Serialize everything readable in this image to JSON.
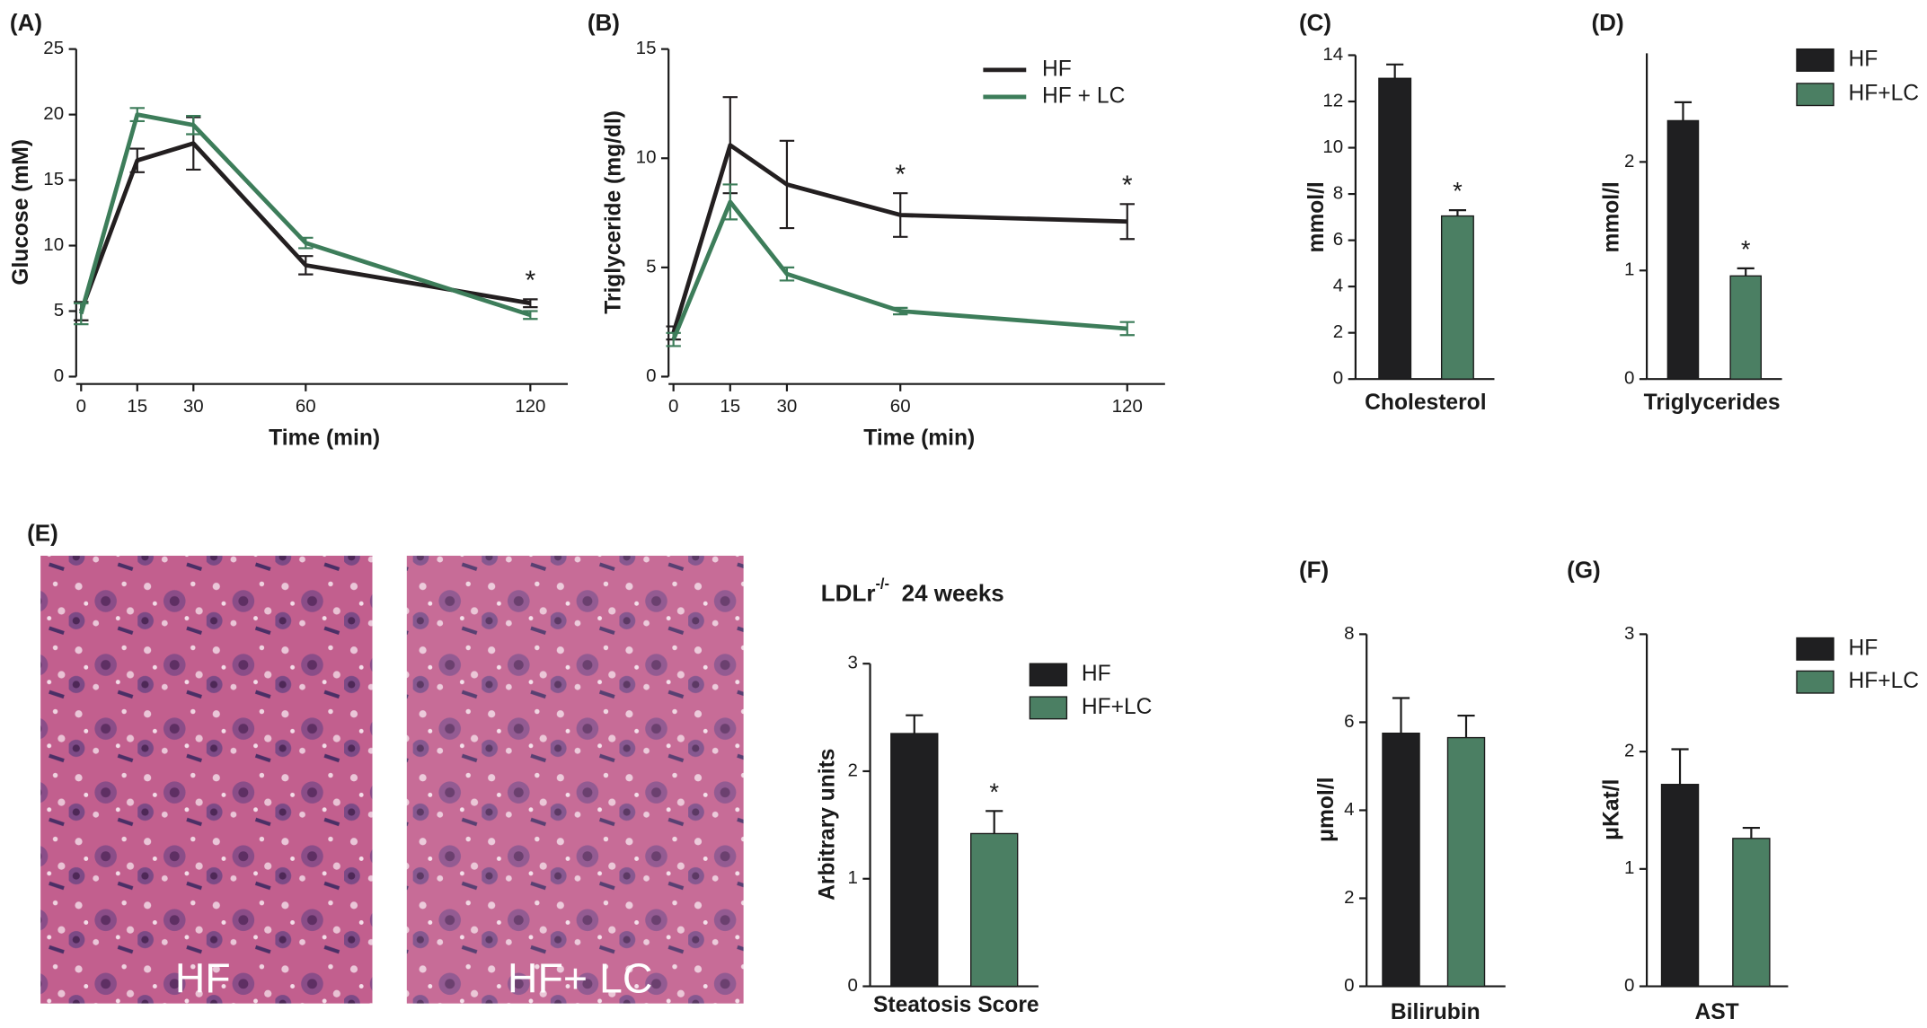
{
  "chart_data": [
    {
      "type": "line",
      "panel": "(A)",
      "x_label": "Time (min)",
      "y_label": "Glucose (mM)",
      "x": [
        0,
        15,
        30,
        60,
        120
      ],
      "xlim": [
        0,
        130
      ],
      "xticks": [
        0,
        15,
        30,
        60,
        120
      ],
      "ylim": [
        0,
        25
      ],
      "yticks": [
        0,
        5,
        10,
        15,
        20,
        25
      ],
      "series": [
        {
          "color": "#231f20",
          "values": [
            5,
            16.5,
            17.8,
            8.5,
            5.6
          ],
          "errors": [
            0.7,
            0.9,
            2,
            0.7,
            0.3
          ]
        },
        {
          "color": "#3d7d5a",
          "values": [
            4.8,
            20,
            19.2,
            10.2,
            4.7
          ],
          "errors": [
            0.8,
            0.5,
            0.7,
            0.4,
            0.3
          ]
        }
      ],
      "annotations": [
        {
          "text": "*",
          "x": 120
        }
      ]
    },
    {
      "type": "line",
      "panel": "(B)",
      "x_label": "Time (min)",
      "y_label": "Triglyceride (mg/dl)",
      "x": [
        0,
        15,
        30,
        60,
        120
      ],
      "xlim": [
        0,
        130
      ],
      "xticks": [
        0,
        15,
        30,
        60,
        120
      ],
      "ylim": [
        0,
        15
      ],
      "yticks": [
        0,
        5,
        10,
        15
      ],
      "series": [
        {
          "name": "HF",
          "color": "#231f20",
          "values": [
            2,
            10.6,
            8.8,
            7.4,
            7.1
          ],
          "errors": [
            0.3,
            2.2,
            2,
            1,
            0.8
          ]
        },
        {
          "name": "HF + LC",
          "color": "#3d7d5a",
          "values": [
            1.7,
            8,
            4.7,
            3,
            2.2
          ],
          "errors": [
            0.3,
            0.8,
            0.3,
            0.15,
            0.3
          ]
        }
      ],
      "annotations": [
        {
          "text": "*",
          "x": 60
        },
        {
          "text": "*",
          "x": 120
        }
      ]
    },
    {
      "type": "bar",
      "panel": "(C)",
      "categories": [
        "Cholesterol"
      ],
      "y_label": "mmol/l",
      "ylim": [
        0,
        14
      ],
      "yticks": [
        0,
        2,
        4,
        6,
        8,
        10,
        12,
        14
      ],
      "series": [
        {
          "color": "#1f1f21",
          "values": [
            13
          ],
          "errors": [
            0.6
          ]
        },
        {
          "color": "#4b7f63",
          "values": [
            7.05
          ],
          "errors": [
            0.25
          ]
        }
      ],
      "annotations": [
        {
          "text": "*",
          "series": 1
        }
      ]
    },
    {
      "type": "bar",
      "panel": "(D)",
      "categories": [
        "Triglycerides"
      ],
      "y_label": "mmol/l",
      "ylim": [
        0,
        3
      ],
      "yticks": [
        0,
        1,
        2
      ],
      "series": [
        {
          "name": "HF",
          "color": "#1f1f21",
          "values": [
            2.38
          ],
          "errors": [
            0.17
          ]
        },
        {
          "name": "HF+LC",
          "color": "#4b7f63",
          "values": [
            0.95
          ],
          "errors": [
            0.07
          ]
        }
      ],
      "annotations": [
        {
          "text": "*",
          "series": 1
        }
      ]
    },
    {
      "type": "bar",
      "panel": "(E)",
      "title": [
        "LDLr",
        "-/-",
        "24 weeks"
      ],
      "image_labels": [
        "HF",
        "HF+ LC"
      ],
      "categories": [
        "Steatosis Score"
      ],
      "y_label": "Arbitrary units",
      "ylim": [
        0,
        3
      ],
      "yticks": [
        0,
        1,
        2,
        3
      ],
      "series": [
        {
          "name": "HF",
          "color": "#1f1f21",
          "values": [
            2.35
          ],
          "errors": [
            0.17
          ]
        },
        {
          "name": "HF+LC",
          "color": "#4b7f63",
          "values": [
            1.42
          ],
          "errors": [
            0.21
          ]
        }
      ],
      "annotations": [
        {
          "text": "*",
          "series": 1
        }
      ]
    },
    {
      "type": "bar",
      "panel": "(F)",
      "categories": [
        "Bilirubin"
      ],
      "y_label": "μmol/l",
      "ylim": [
        0,
        8
      ],
      "yticks": [
        0,
        2,
        4,
        6,
        8
      ],
      "series": [
        {
          "color": "#1f1f21",
          "values": [
            5.75
          ],
          "errors": [
            0.8
          ]
        },
        {
          "color": "#4b7f63",
          "values": [
            5.65
          ],
          "errors": [
            0.5
          ]
        }
      ]
    },
    {
      "type": "bar",
      "panel": "(G)",
      "categories": [
        "AST"
      ],
      "y_label": "μKat/l",
      "ylim": [
        0,
        3
      ],
      "yticks": [
        0,
        1,
        2,
        3
      ],
      "series": [
        {
          "name": "HF",
          "color": "#1f1f21",
          "values": [
            1.72
          ],
          "errors": [
            0.3
          ]
        },
        {
          "name": "HF+LC",
          "color": "#4b7f63",
          "values": [
            1.26
          ],
          "errors": [
            0.09
          ]
        }
      ]
    }
  ]
}
